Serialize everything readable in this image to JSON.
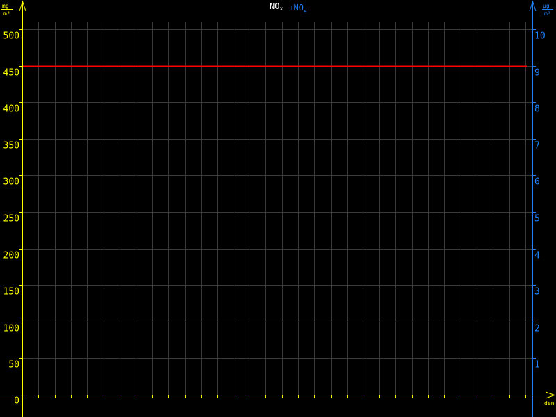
{
  "chart_data": {
    "type": "line",
    "title_parts": [
      {
        "text": "NO",
        "sub": "x",
        "color": "#ffffff"
      },
      {
        "text": "+NO",
        "sub": "2",
        "color": "#1e82ff"
      }
    ],
    "left_axis": {
      "unit_num": "mg",
      "unit_den": "m³",
      "ylim": [
        0,
        500
      ],
      "ticks": [
        "0",
        "50",
        "100",
        "150",
        "200",
        "250",
        "300",
        "350",
        "400",
        "450",
        "500"
      ],
      "color": "#ffff00"
    },
    "right_axis": {
      "unit_num": "µg",
      "unit_den": "m³",
      "ylim": [
        0,
        10
      ],
      "ticks": [
        "1",
        "2",
        "3",
        "4",
        "5",
        "6",
        "7",
        "8",
        "9",
        "10"
      ],
      "color": "#1e82ff"
    },
    "xlabel": "den",
    "x_divisions": 31,
    "grid": true,
    "series": [
      {
        "axis": "left",
        "color": "#ff0000",
        "x": [
          0,
          31
        ],
        "values": [
          450,
          450
        ]
      }
    ]
  }
}
